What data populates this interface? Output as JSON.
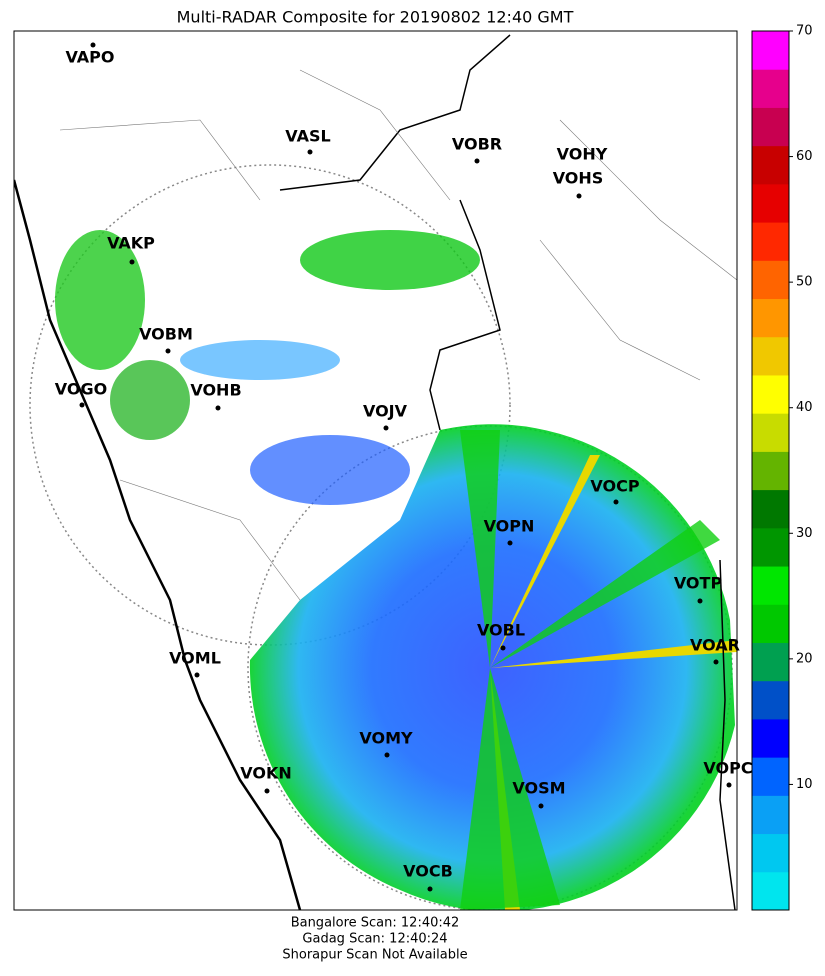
{
  "title": "Multi-RADAR Composite for 20190802 12:40 GMT",
  "stations": [
    "VAPO",
    "VASL",
    "VOBR",
    "VOHY",
    "VOHS",
    "VAKP",
    "VOBM",
    "VOGO",
    "VOHB",
    "VOJV",
    "VOCP",
    "VOPN",
    "VOTP",
    "VOBL",
    "VOAR",
    "VOML",
    "VOMY",
    "VOKN",
    "VOPC",
    "VOSM",
    "VOCB"
  ],
  "colorbar": {
    "ylim": [
      0,
      70
    ],
    "yticks": [
      10,
      20,
      30,
      40,
      50,
      60,
      70
    ],
    "colors": [
      "#00e5ee",
      "#00c8f0",
      "#0aa0f5",
      "#0064ff",
      "#0000ff",
      "#0050c8",
      "#00a050",
      "#00c800",
      "#00e600",
      "#009600",
      "#007800",
      "#64b400",
      "#c8dc00",
      "#ffff00",
      "#f0c800",
      "#ff9600",
      "#ff6400",
      "#ff2800",
      "#e60000",
      "#c80000",
      "#c80050",
      "#e6008c",
      "#ff00ff"
    ]
  },
  "footer": [
    "Bangalore Scan: 12:40:42",
    "Gadag Scan: 12:40:24",
    "Shorapur Scan Not Available"
  ]
}
